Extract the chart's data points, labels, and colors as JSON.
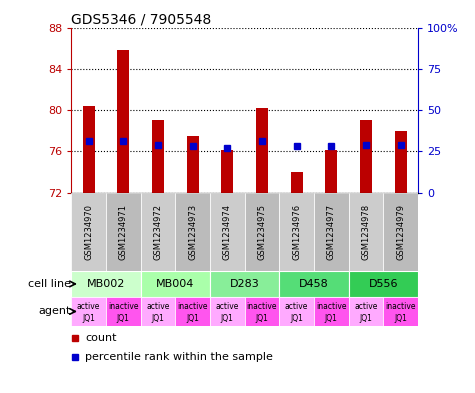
{
  "title": "GDS5346 / 7905548",
  "samples": [
    "GSM1234970",
    "GSM1234971",
    "GSM1234972",
    "GSM1234973",
    "GSM1234974",
    "GSM1234975",
    "GSM1234976",
    "GSM1234977",
    "GSM1234978",
    "GSM1234979"
  ],
  "bar_values": [
    80.4,
    85.8,
    79.0,
    77.5,
    76.1,
    80.2,
    74.0,
    76.1,
    79.0,
    78.0
  ],
  "blue_pct": [
    31,
    31,
    29,
    28,
    27,
    31,
    28,
    28,
    29,
    29
  ],
  "ymin": 72,
  "ymax": 88,
  "yticks": [
    72,
    76,
    80,
    84,
    88
  ],
  "right_yticks": [
    0,
    25,
    50,
    75,
    100
  ],
  "bar_color": "#bb0000",
  "blue_color": "#0000cc",
  "cell_lines": [
    {
      "label": "MB002",
      "cols": [
        0,
        1
      ],
      "color": "#ccffcc"
    },
    {
      "label": "MB004",
      "cols": [
        2,
        3
      ],
      "color": "#aaffaa"
    },
    {
      "label": "D283",
      "cols": [
        4,
        5
      ],
      "color": "#88ee99"
    },
    {
      "label": "D458",
      "cols": [
        6,
        7
      ],
      "color": "#55dd77"
    },
    {
      "label": "D556",
      "cols": [
        8,
        9
      ],
      "color": "#33cc55"
    }
  ],
  "agent_labels": [
    [
      "active",
      "JQ1"
    ],
    [
      "inactive",
      "JQ1"
    ],
    [
      "active",
      "JQ1"
    ],
    [
      "inactive",
      "JQ1"
    ],
    [
      "active",
      "JQ1"
    ],
    [
      "inactive",
      "JQ1"
    ],
    [
      "active",
      "JQ1"
    ],
    [
      "inactive",
      "JQ1"
    ],
    [
      "active",
      "JQ1"
    ],
    [
      "inactive",
      "JQ1"
    ]
  ],
  "agent_bg_even": "#ffaaff",
  "agent_bg_odd": "#ff55ee",
  "sample_bg": "#cccccc",
  "bar_width": 0.35
}
